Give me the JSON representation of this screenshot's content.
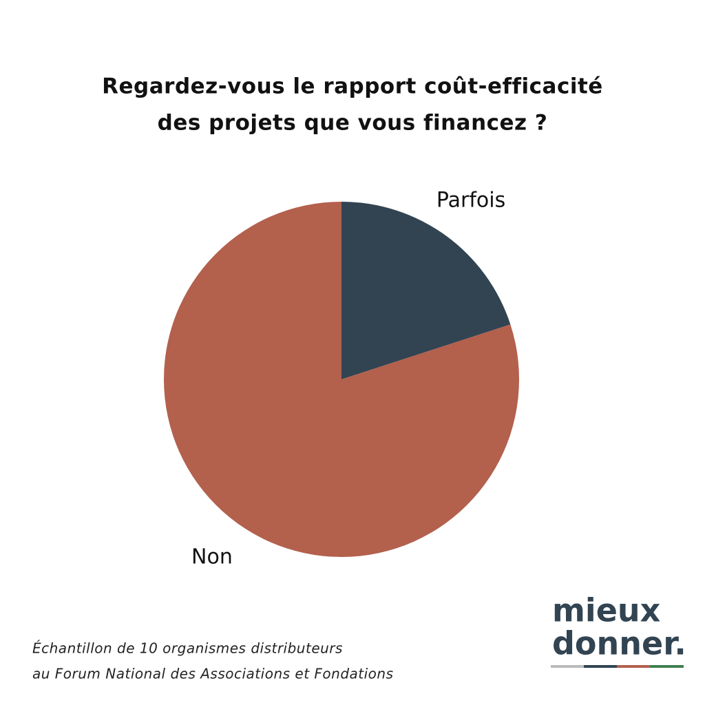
{
  "chart_data": {
    "type": "pie",
    "title": [
      "Regardez-vous le rapport coût-efficacité",
      "des projets que vous financez ?"
    ],
    "categories": [
      "Parfois",
      "Non"
    ],
    "values": [
      20,
      80
    ],
    "colors": [
      "#324452",
      "#b3604d"
    ],
    "footnote": [
      "Échantillon de 10 organismes distributeurs",
      "au Forum National des Associations et Fondations"
    ],
    "logo": [
      "mieux",
      "donner."
    ]
  }
}
